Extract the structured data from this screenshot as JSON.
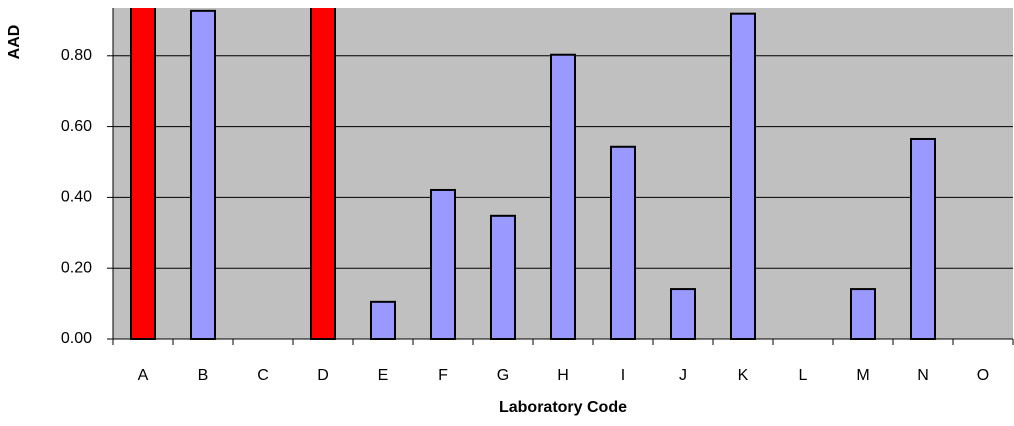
{
  "chart_data": {
    "type": "bar",
    "x_label": "Laboratory Code",
    "y_label": "AAD",
    "categories": [
      "A",
      "B",
      "C",
      "D",
      "E",
      "F",
      "G",
      "H",
      "I",
      "J",
      "K",
      "L",
      "M",
      "N",
      "O"
    ],
    "values": [
      1.0,
      0.927,
      null,
      1.0,
      0.105,
      0.421,
      0.348,
      0.803,
      0.543,
      0.141,
      0.919,
      null,
      0.141,
      0.565,
      null
    ],
    "colors": [
      "#ff0000",
      "#9999ff",
      "#9999ff",
      "#ff0000",
      "#9999ff",
      "#9999ff",
      "#9999ff",
      "#9999ff",
      "#9999ff",
      "#9999ff",
      "#9999ff",
      "#9999ff",
      "#9999ff",
      "#9999ff",
      "#9999ff"
    ],
    "ylim": [
      0,
      0.935
    ],
    "yticks": [
      {
        "value": 0,
        "label": "0.00"
      },
      {
        "value": 0.2,
        "label": "0.20"
      },
      {
        "value": 0.4,
        "label": "0.40"
      },
      {
        "value": 0.6,
        "label": "0.60"
      },
      {
        "value": 0.8,
        "label": "0.80"
      }
    ],
    "grid": true
  }
}
